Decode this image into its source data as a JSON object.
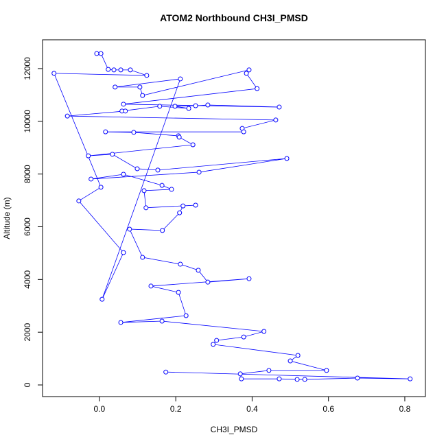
{
  "chart_data": {
    "type": "line_points",
    "title": "ATOM2 Northbound CH3I_PMSD",
    "x_label": "CH3I_PMSD",
    "y_label": "Altitude (m)",
    "color": "#0000ff",
    "x": [
      -0.007,
      0.004,
      0.023,
      0.038,
      0.056,
      0.081,
      0.124,
      -0.119,
      0.004,
      -0.054,
      0.063,
      0.007,
      0.212,
      0.041,
      0.106,
      0.113,
      0.392,
      0.385,
      0.413,
      0.063,
      0.471,
      0.284,
      0.252,
      0.198,
      0.234,
      0.158,
      0.059,
      0.068,
      -0.084,
      0.462,
      0.374,
      0.378,
      0.016,
      0.09,
      0.207,
      0.209,
      0.245,
      -0.029,
      0.034,
      0.099,
      0.153,
      0.491,
      0.261,
      -0.022,
      0.063,
      0.164,
      0.189,
      0.117,
      0.122,
      0.252,
      0.219,
      0.21,
      0.165,
      0.079,
      0.113,
      0.212,
      0.259,
      0.284,
      0.392,
      0.135,
      0.207,
      0.227,
      0.056,
      0.164,
      0.431,
      0.378,
      0.307,
      0.298,
      0.52,
      0.5,
      0.595,
      0.444,
      0.369,
      0.372,
      0.471,
      0.518,
      0.538,
      0.676,
      0.814,
      0.174
    ],
    "values": [
      12570,
      12570,
      11970,
      11950,
      11950,
      11950,
      11740,
      11820,
      7500,
      6980,
      5020,
      3250,
      11610,
      11300,
      11300,
      10980,
      11950,
      11820,
      11240,
      10650,
      10540,
      10620,
      10590,
      10570,
      10490,
      10570,
      10390,
      10390,
      10200,
      10050,
      9730,
      9600,
      9600,
      9580,
      9450,
      9400,
      9110,
      8690,
      8750,
      8200,
      8150,
      8590,
      8070,
      7810,
      7990,
      7570,
      7420,
      7370,
      6720,
      6820,
      6790,
      6530,
      5860,
      5910,
      4840,
      4580,
      4350,
      3900,
      4030,
      3750,
      3510,
      2630,
      2370,
      2420,
      2030,
      1820,
      1690,
      1540,
      1120,
      910,
      550,
      550,
      420,
      230,
      230,
      210,
      210,
      260,
      230,
      490
    ],
    "xlim": [
      -0.149,
      0.854
    ],
    "ylim": [
      -442,
      13092
    ],
    "xticks": [
      {
        "value": 0,
        "label": "0.0"
      },
      0.2,
      0.4,
      0.6,
      0.8
    ],
    "yticks": [
      0,
      2000,
      4000,
      6000,
      8000,
      10000,
      12000
    ]
  }
}
